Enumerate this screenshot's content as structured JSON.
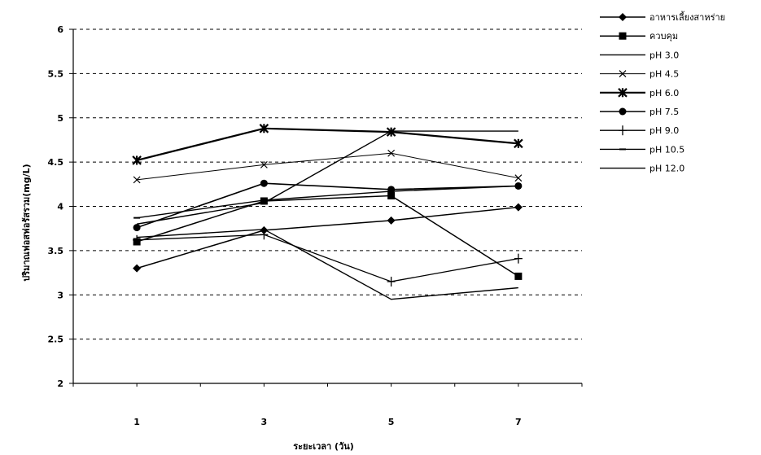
{
  "chart_data": {
    "type": "line",
    "xlabel": "ระยะเวลา (วัน)",
    "ylabel": "ปริมาณฟอสฟอรัสรวม(mg/L)",
    "x": [
      1,
      3,
      5,
      7
    ],
    "xlim": [
      0,
      8
    ],
    "ylim": [
      2,
      6
    ],
    "yticks": [
      "2",
      "2.5",
      "3",
      "3.5",
      "4",
      "4.5",
      "5",
      "5.5",
      "6"
    ],
    "xticks": [
      "1",
      "3",
      "5",
      "7"
    ],
    "grid": "horizontal-dashed",
    "legend_position": "right",
    "series": [
      {
        "name": "อาหารเลี้ยงสาหร่าย",
        "marker": "diamond",
        "values": [
          3.3,
          3.73,
          3.84,
          3.99
        ]
      },
      {
        "name": "ควบคุม",
        "marker": "square",
        "values": [
          3.6,
          4.06,
          4.12,
          3.21
        ]
      },
      {
        "name": "pH 3.0",
        "marker": "none",
        "values": [
          3.8,
          4.04,
          4.85,
          4.85
        ]
      },
      {
        "name": "pH 4.5",
        "marker": "x",
        "values": [
          4.3,
          4.47,
          4.6,
          4.32
        ]
      },
      {
        "name": "pH 6.0",
        "marker": "asterisk",
        "values": [
          4.52,
          4.88,
          4.84,
          4.71
        ]
      },
      {
        "name": "pH 7.5",
        "marker": "circle",
        "values": [
          3.76,
          4.26,
          4.19,
          4.23
        ]
      },
      {
        "name": "pH 9.0",
        "marker": "plus",
        "values": [
          3.62,
          3.68,
          3.15,
          3.41
        ]
      },
      {
        "name": "pH 10.5",
        "marker": "dash",
        "values": [
          3.87,
          4.07,
          4.17,
          4.23
        ]
      },
      {
        "name": "pH 12.0",
        "marker": "none",
        "values": [
          3.65,
          3.74,
          2.95,
          3.08
        ]
      }
    ]
  }
}
